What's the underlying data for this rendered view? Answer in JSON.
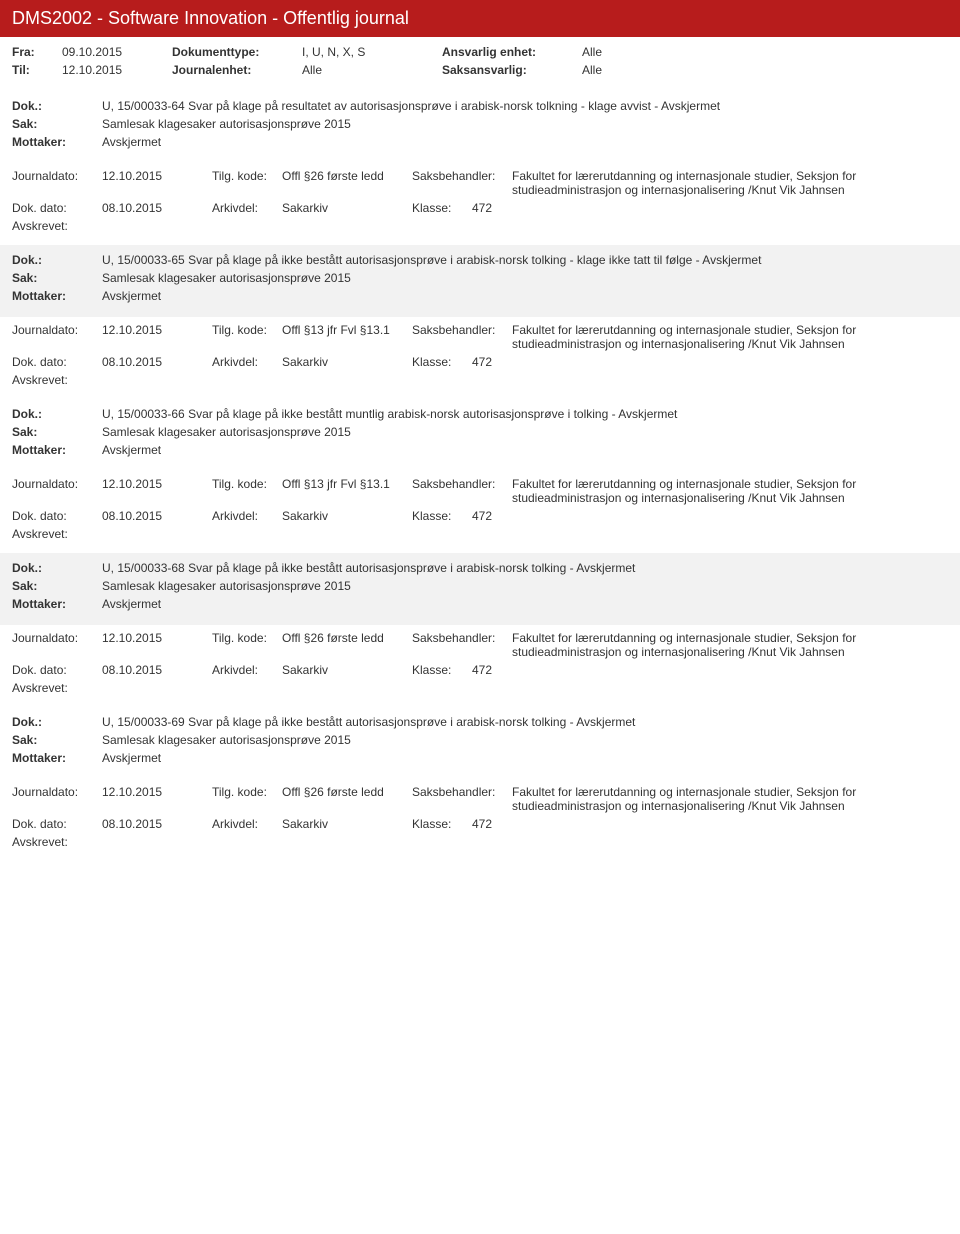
{
  "header": {
    "title": "DMS2002 - Software Innovation - Offentlig journal"
  },
  "filter": {
    "fra_label": "Fra:",
    "fra_val": "09.10.2015",
    "til_label": "Til:",
    "til_val": "12.10.2015",
    "doktype_label": "Dokumenttype:",
    "doktype_val": "I, U, N, X, S",
    "journalenhet_label": "Journalenhet:",
    "journalenhet_val": "Alle",
    "ansvarlig_label": "Ansvarlig enhet:",
    "ansvarlig_val": "Alle",
    "saksansvarlig_label": "Saksansvarlig:",
    "saksansvarlig_val": "Alle"
  },
  "labels": {
    "dok": "Dok.:",
    "sak": "Sak:",
    "mottaker": "Mottaker:",
    "journaldato": "Journaldato:",
    "tilgkode": "Tilg. kode:",
    "saksbehandler": "Saksbehandler:",
    "dokdato": "Dok. dato:",
    "arkivdel": "Arkivdel:",
    "klasse": "Klasse:",
    "avskrevet": "Avskrevet:"
  },
  "entries": [
    {
      "dok": "U, 15/00033-64 Svar på klage på resultatet av autorisasjonsprøve i arabisk-norsk tolkning - klage avvist - Avskjermet",
      "sak": "Samlesak klagesaker autorisasjonsprøve 2015",
      "mottaker": "Avskjermet",
      "journaldato": "12.10.2015",
      "tilgkode": "Offl §26 første ledd",
      "saksbehandler": "Fakultet for lærerutdanning og internasjonale studier, Seksjon for studieadministrasjon og internasjonalisering /Knut Vik Jahnsen",
      "dokdato": "08.10.2015",
      "arkivdel": "Sakarkiv",
      "klasse": "472",
      "alt": false
    },
    {
      "dok": "U, 15/00033-65 Svar på klage på ikke bestått autorisasjonsprøve i arabisk-norsk tolking - klage ikke tatt til følge - Avskjermet",
      "sak": "Samlesak klagesaker autorisasjonsprøve 2015",
      "mottaker": "Avskjermet",
      "journaldato": "12.10.2015",
      "tilgkode": "Offl §13 jfr Fvl §13.1",
      "saksbehandler": "Fakultet for lærerutdanning og internasjonale studier, Seksjon for studieadministrasjon og internasjonalisering /Knut Vik Jahnsen",
      "dokdato": "08.10.2015",
      "arkivdel": "Sakarkiv",
      "klasse": "472",
      "alt": true
    },
    {
      "dok": "U, 15/00033-66 Svar på klage på ikke bestått muntlig arabisk-norsk autorisasjonsprøve i tolking - Avskjermet",
      "sak": "Samlesak klagesaker autorisasjonsprøve 2015",
      "mottaker": "Avskjermet",
      "journaldato": "12.10.2015",
      "tilgkode": "Offl §13 jfr Fvl §13.1",
      "saksbehandler": "Fakultet for lærerutdanning og internasjonale studier, Seksjon for studieadministrasjon og internasjonalisering /Knut Vik Jahnsen",
      "dokdato": "08.10.2015",
      "arkivdel": "Sakarkiv",
      "klasse": "472",
      "alt": false
    },
    {
      "dok": "U, 15/00033-68 Svar på klage på ikke bestått autorisasjonsprøve i arabisk-norsk tolking - Avskjermet",
      "sak": "Samlesak klagesaker autorisasjonsprøve 2015",
      "mottaker": "Avskjermet",
      "journaldato": "12.10.2015",
      "tilgkode": "Offl §26 første ledd",
      "saksbehandler": "Fakultet for lærerutdanning og internasjonale studier, Seksjon for studieadministrasjon og internasjonalisering /Knut Vik Jahnsen",
      "dokdato": "08.10.2015",
      "arkivdel": "Sakarkiv",
      "klasse": "472",
      "alt": true
    },
    {
      "dok": "U, 15/00033-69 Svar på klage på ikke bestått autorisasjonsprøve i arabisk-norsk tolking - Avskjermet",
      "sak": "Samlesak klagesaker autorisasjonsprøve 2015",
      "mottaker": "Avskjermet",
      "journaldato": "12.10.2015",
      "tilgkode": "Offl §26 første ledd",
      "saksbehandler": "Fakultet for lærerutdanning og internasjonale studier, Seksjon for studieadministrasjon og internasjonalisering /Knut Vik Jahnsen",
      "dokdato": "08.10.2015",
      "arkivdel": "Sakarkiv",
      "klasse": "472",
      "alt": false
    }
  ]
}
